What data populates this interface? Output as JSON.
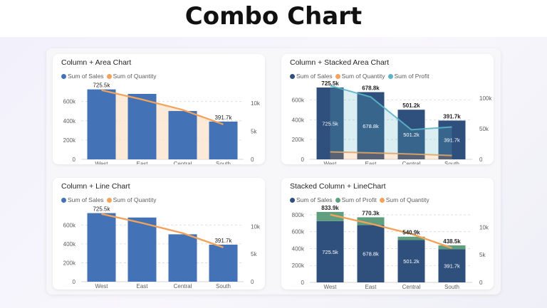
{
  "page": {
    "title": "Combo Chart"
  },
  "colors": {
    "sales": "#4472b6",
    "sales_dark": "#2f4f7c",
    "quantity": "#f2a35b",
    "profit_teal": "#5ab5c8",
    "profit_green": "#5f9e7e"
  },
  "chart_data": [
    {
      "type": "bar",
      "combo": "column + area",
      "title": "Column + Area Chart",
      "categories": [
        "West",
        "East",
        "Central",
        "South"
      ],
      "series": [
        {
          "name": "Sum of Sales",
          "kind": "column",
          "axis": "left",
          "color": "#4472b6",
          "values": [
            725500,
            678800,
            501200,
            391700
          ]
        },
        {
          "name": "Sum of Quantity",
          "kind": "area",
          "axis": "right",
          "color": "#f2a35b",
          "values": [
            12266,
            10618,
            8780,
            6209
          ]
        }
      ],
      "data_labels": [
        {
          "category": "West",
          "text": "725.5k"
        },
        {
          "category": "South",
          "text": "391.7k"
        }
      ],
      "yticks_left": [
        {
          "value": 0,
          "label": "0"
        },
        {
          "value": 200000,
          "label": "200k"
        },
        {
          "value": 400000,
          "label": "400k"
        },
        {
          "value": 600000,
          "label": "600k"
        }
      ],
      "yticks_right": [
        {
          "value": 0,
          "label": "0"
        },
        {
          "value": 5000,
          "label": "5k"
        },
        {
          "value": 10000,
          "label": "10k"
        }
      ],
      "ylim_left": [
        0,
        760000
      ],
      "ylim_right": [
        0,
        13000
      ],
      "grid": "dashed",
      "legend": "top-left"
    },
    {
      "type": "bar",
      "combo": "column + stacked area",
      "title": "Column + Stacked Area Chart",
      "categories": [
        "West",
        "East",
        "Central",
        "South"
      ],
      "series": [
        {
          "name": "Sum of Sales",
          "kind": "column",
          "axis": "left",
          "color": "#2f4f7c",
          "values": [
            725500,
            678800,
            501200,
            391700
          ]
        },
        {
          "name": "Sum of Quantity",
          "kind": "stacked-area",
          "axis": "right",
          "color": "#f2a35b",
          "values": [
            12266,
            10618,
            8780,
            6209
          ]
        },
        {
          "name": "Sum of Profit",
          "kind": "stacked-area",
          "axis": "right",
          "color": "#5ab5c8",
          "values": [
            108418,
            91523,
            39706,
            46749
          ]
        }
      ],
      "data_labels": [
        {
          "category": "West",
          "outside": "725.5k",
          "inside": "725.5k"
        },
        {
          "category": "East",
          "outside": "678.8k",
          "inside": "678.8k"
        },
        {
          "category": "Central",
          "outside": "501.2k",
          "inside": "501.2k"
        },
        {
          "category": "South",
          "outside": "391.7k",
          "inside": "391.7k"
        }
      ],
      "yticks_left": [
        {
          "value": 0,
          "label": "0"
        },
        {
          "value": 200000,
          "label": "200k"
        },
        {
          "value": 400000,
          "label": "400k"
        },
        {
          "value": 600000,
          "label": "600k"
        }
      ],
      "yticks_right": [
        {
          "value": 0,
          "label": "0"
        },
        {
          "value": 50000,
          "label": "50k"
        },
        {
          "value": 100000,
          "label": "100k"
        }
      ],
      "ylim_left": [
        0,
        740000
      ],
      "ylim_right": [
        0,
        120000
      ],
      "grid": "dashed",
      "legend": "top-left"
    },
    {
      "type": "bar",
      "combo": "column + line",
      "title": "Column + Line Chart",
      "categories": [
        "West",
        "East",
        "Central",
        "South"
      ],
      "series": [
        {
          "name": "Sum of Sales",
          "kind": "column",
          "axis": "left",
          "color": "#4472b6",
          "values": [
            725500,
            678800,
            501200,
            391700
          ]
        },
        {
          "name": "Sum of Quantity",
          "kind": "line",
          "axis": "right",
          "color": "#f2a35b",
          "values": [
            12266,
            10618,
            8780,
            6209
          ]
        }
      ],
      "data_labels": [
        {
          "category": "West",
          "text": "725.5k"
        },
        {
          "category": "South",
          "text": "391.7k"
        }
      ],
      "yticks_left": [
        {
          "value": 0,
          "label": "0"
        },
        {
          "value": 200000,
          "label": "200k"
        },
        {
          "value": 400000,
          "label": "400k"
        },
        {
          "value": 600000,
          "label": "600k"
        }
      ],
      "yticks_right": [
        {
          "value": 0,
          "label": "0"
        },
        {
          "value": 5000,
          "label": "5k"
        },
        {
          "value": 10000,
          "label": "10k"
        }
      ],
      "ylim_left": [
        0,
        760000
      ],
      "ylim_right": [
        0,
        13000
      ],
      "grid": "dashed",
      "legend": "top-left"
    },
    {
      "type": "bar",
      "combo": "stacked column + line",
      "title": "Stacked Column + LineChart",
      "categories": [
        "West",
        "East",
        "Central",
        "South"
      ],
      "series": [
        {
          "name": "Sum of Sales",
          "kind": "stacked-column",
          "axis": "left",
          "color": "#2f4f7c",
          "values": [
            725500,
            678800,
            501200,
            391700
          ]
        },
        {
          "name": "Sum of Profit",
          "kind": "stacked-column",
          "axis": "left",
          "color": "#5f9e7e",
          "values": [
            108418,
            91523,
            39706,
            46749
          ]
        },
        {
          "name": "Sum of Quantity",
          "kind": "line",
          "axis": "right",
          "color": "#f2a35b",
          "values": [
            12266,
            10618,
            8780,
            6209
          ]
        }
      ],
      "data_labels": [
        {
          "category": "West",
          "total": "833.9k",
          "inside": "725.5k"
        },
        {
          "category": "East",
          "total": "770.3k",
          "inside": "678.8k"
        },
        {
          "category": "Central",
          "total": "540.9k",
          "inside": "501.2k"
        },
        {
          "category": "South",
          "total": "438.5k",
          "inside": "391.7k"
        }
      ],
      "yticks_left": [
        {
          "value": 0,
          "label": "0"
        },
        {
          "value": 200000,
          "label": "200k"
        },
        {
          "value": 400000,
          "label": "400k"
        },
        {
          "value": 600000,
          "label": "600k"
        },
        {
          "value": 800000,
          "label": "800k"
        }
      ],
      "yticks_right": [
        {
          "value": 0,
          "label": "0"
        },
        {
          "value": 5000,
          "label": "5k"
        },
        {
          "value": 10000,
          "label": "10k"
        }
      ],
      "ylim_left": [
        0,
        850000
      ],
      "ylim_right": [
        0,
        13000
      ],
      "grid": "dashed",
      "legend": "top-left"
    }
  ]
}
